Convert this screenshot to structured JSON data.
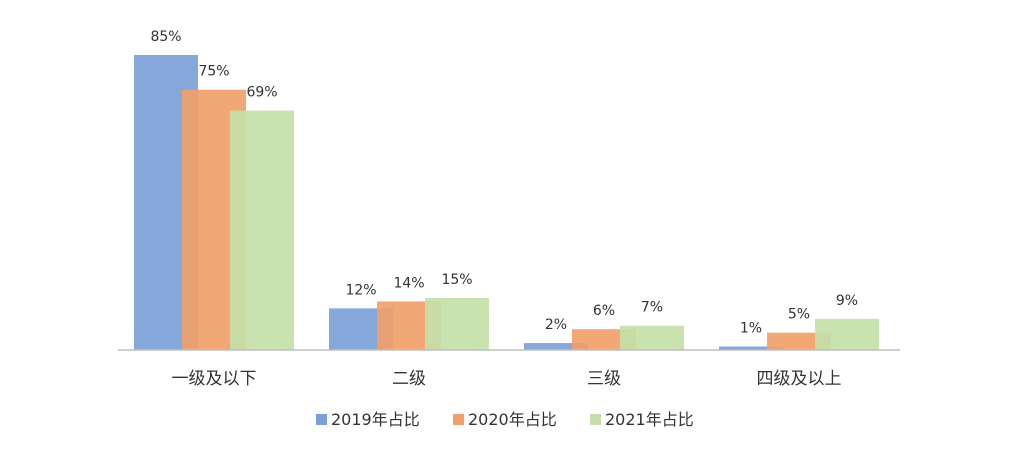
{
  "chart_data": {
    "type": "bar",
    "categories": [
      "一级及以下",
      "二级",
      "三级",
      "四级及以上"
    ],
    "series": [
      {
        "name": "2019年占比",
        "values": [
          85,
          12,
          2,
          1
        ],
        "labels": [
          "85%",
          "12%",
          "2%",
          "1%"
        ],
        "color": "#7b9fd6"
      },
      {
        "name": "2020年占比",
        "values": [
          75,
          14,
          6,
          5
        ],
        "labels": [
          "75%",
          "14%",
          "6%",
          "5%"
        ],
        "color": "#f0a06a"
      },
      {
        "name": "2021年占比",
        "values": [
          69,
          15,
          7,
          9
        ],
        "labels": [
          "69%",
          "15%",
          "7%",
          "9%"
        ],
        "color": "#c4e0a8"
      }
    ],
    "ylim": [
      0,
      85
    ],
    "grid": false,
    "legend_position": "bottom",
    "title": "",
    "xlabel": "",
    "ylabel": ""
  }
}
